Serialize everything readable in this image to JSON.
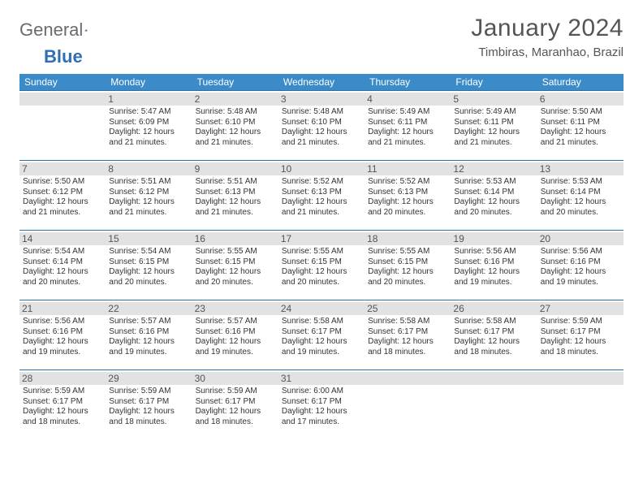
{
  "logo": {
    "word1": "General",
    "word2": "Blue"
  },
  "title": "January 2024",
  "location": "Timbiras, Maranhao, Brazil",
  "day_headers": [
    "Sunday",
    "Monday",
    "Tuesday",
    "Wednesday",
    "Thursday",
    "Friday",
    "Saturday"
  ],
  "colors": {
    "header_bg": "#3b8bc9",
    "header_text": "#ffffff",
    "cell_border": "#2e6fa8",
    "daynum_bg": "#e2e2e2",
    "text": "#333333",
    "title_text": "#555555"
  },
  "weeks": [
    [
      {
        "n": "",
        "sunrise": "",
        "sunset": "",
        "daylight": ""
      },
      {
        "n": "1",
        "sunrise": "Sunrise: 5:47 AM",
        "sunset": "Sunset: 6:09 PM",
        "daylight": "Daylight: 12 hours and 21 minutes."
      },
      {
        "n": "2",
        "sunrise": "Sunrise: 5:48 AM",
        "sunset": "Sunset: 6:10 PM",
        "daylight": "Daylight: 12 hours and 21 minutes."
      },
      {
        "n": "3",
        "sunrise": "Sunrise: 5:48 AM",
        "sunset": "Sunset: 6:10 PM",
        "daylight": "Daylight: 12 hours and 21 minutes."
      },
      {
        "n": "4",
        "sunrise": "Sunrise: 5:49 AM",
        "sunset": "Sunset: 6:11 PM",
        "daylight": "Daylight: 12 hours and 21 minutes."
      },
      {
        "n": "5",
        "sunrise": "Sunrise: 5:49 AM",
        "sunset": "Sunset: 6:11 PM",
        "daylight": "Daylight: 12 hours and 21 minutes."
      },
      {
        "n": "6",
        "sunrise": "Sunrise: 5:50 AM",
        "sunset": "Sunset: 6:11 PM",
        "daylight": "Daylight: 12 hours and 21 minutes."
      }
    ],
    [
      {
        "n": "7",
        "sunrise": "Sunrise: 5:50 AM",
        "sunset": "Sunset: 6:12 PM",
        "daylight": "Daylight: 12 hours and 21 minutes."
      },
      {
        "n": "8",
        "sunrise": "Sunrise: 5:51 AM",
        "sunset": "Sunset: 6:12 PM",
        "daylight": "Daylight: 12 hours and 21 minutes."
      },
      {
        "n": "9",
        "sunrise": "Sunrise: 5:51 AM",
        "sunset": "Sunset: 6:13 PM",
        "daylight": "Daylight: 12 hours and 21 minutes."
      },
      {
        "n": "10",
        "sunrise": "Sunrise: 5:52 AM",
        "sunset": "Sunset: 6:13 PM",
        "daylight": "Daylight: 12 hours and 21 minutes."
      },
      {
        "n": "11",
        "sunrise": "Sunrise: 5:52 AM",
        "sunset": "Sunset: 6:13 PM",
        "daylight": "Daylight: 12 hours and 20 minutes."
      },
      {
        "n": "12",
        "sunrise": "Sunrise: 5:53 AM",
        "sunset": "Sunset: 6:14 PM",
        "daylight": "Daylight: 12 hours and 20 minutes."
      },
      {
        "n": "13",
        "sunrise": "Sunrise: 5:53 AM",
        "sunset": "Sunset: 6:14 PM",
        "daylight": "Daylight: 12 hours and 20 minutes."
      }
    ],
    [
      {
        "n": "14",
        "sunrise": "Sunrise: 5:54 AM",
        "sunset": "Sunset: 6:14 PM",
        "daylight": "Daylight: 12 hours and 20 minutes."
      },
      {
        "n": "15",
        "sunrise": "Sunrise: 5:54 AM",
        "sunset": "Sunset: 6:15 PM",
        "daylight": "Daylight: 12 hours and 20 minutes."
      },
      {
        "n": "16",
        "sunrise": "Sunrise: 5:55 AM",
        "sunset": "Sunset: 6:15 PM",
        "daylight": "Daylight: 12 hours and 20 minutes."
      },
      {
        "n": "17",
        "sunrise": "Sunrise: 5:55 AM",
        "sunset": "Sunset: 6:15 PM",
        "daylight": "Daylight: 12 hours and 20 minutes."
      },
      {
        "n": "18",
        "sunrise": "Sunrise: 5:55 AM",
        "sunset": "Sunset: 6:15 PM",
        "daylight": "Daylight: 12 hours and 20 minutes."
      },
      {
        "n": "19",
        "sunrise": "Sunrise: 5:56 AM",
        "sunset": "Sunset: 6:16 PM",
        "daylight": "Daylight: 12 hours and 19 minutes."
      },
      {
        "n": "20",
        "sunrise": "Sunrise: 5:56 AM",
        "sunset": "Sunset: 6:16 PM",
        "daylight": "Daylight: 12 hours and 19 minutes."
      }
    ],
    [
      {
        "n": "21",
        "sunrise": "Sunrise: 5:56 AM",
        "sunset": "Sunset: 6:16 PM",
        "daylight": "Daylight: 12 hours and 19 minutes."
      },
      {
        "n": "22",
        "sunrise": "Sunrise: 5:57 AM",
        "sunset": "Sunset: 6:16 PM",
        "daylight": "Daylight: 12 hours and 19 minutes."
      },
      {
        "n": "23",
        "sunrise": "Sunrise: 5:57 AM",
        "sunset": "Sunset: 6:16 PM",
        "daylight": "Daylight: 12 hours and 19 minutes."
      },
      {
        "n": "24",
        "sunrise": "Sunrise: 5:58 AM",
        "sunset": "Sunset: 6:17 PM",
        "daylight": "Daylight: 12 hours and 19 minutes."
      },
      {
        "n": "25",
        "sunrise": "Sunrise: 5:58 AM",
        "sunset": "Sunset: 6:17 PM",
        "daylight": "Daylight: 12 hours and 18 minutes."
      },
      {
        "n": "26",
        "sunrise": "Sunrise: 5:58 AM",
        "sunset": "Sunset: 6:17 PM",
        "daylight": "Daylight: 12 hours and 18 minutes."
      },
      {
        "n": "27",
        "sunrise": "Sunrise: 5:59 AM",
        "sunset": "Sunset: 6:17 PM",
        "daylight": "Daylight: 12 hours and 18 minutes."
      }
    ],
    [
      {
        "n": "28",
        "sunrise": "Sunrise: 5:59 AM",
        "sunset": "Sunset: 6:17 PM",
        "daylight": "Daylight: 12 hours and 18 minutes."
      },
      {
        "n": "29",
        "sunrise": "Sunrise: 5:59 AM",
        "sunset": "Sunset: 6:17 PM",
        "daylight": "Daylight: 12 hours and 18 minutes."
      },
      {
        "n": "30",
        "sunrise": "Sunrise: 5:59 AM",
        "sunset": "Sunset: 6:17 PM",
        "daylight": "Daylight: 12 hours and 18 minutes."
      },
      {
        "n": "31",
        "sunrise": "Sunrise: 6:00 AM",
        "sunset": "Sunset: 6:17 PM",
        "daylight": "Daylight: 12 hours and 17 minutes."
      },
      {
        "n": "",
        "sunrise": "",
        "sunset": "",
        "daylight": ""
      },
      {
        "n": "",
        "sunrise": "",
        "sunset": "",
        "daylight": ""
      },
      {
        "n": "",
        "sunrise": "",
        "sunset": "",
        "daylight": ""
      }
    ]
  ]
}
